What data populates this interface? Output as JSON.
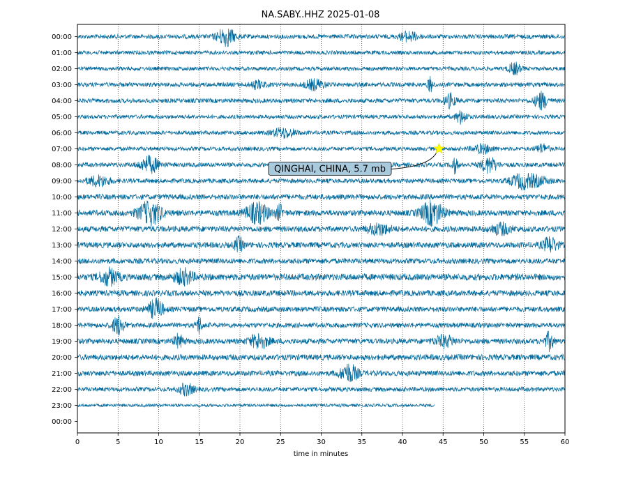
{
  "chart_data": {
    "type": "line",
    "title": "NA.SABY..HHZ 2025-01-08",
    "xlabel": "time in minutes",
    "ylabel": "",
    "xlim": [
      0,
      60
    ],
    "x_ticks": [
      "0",
      "5",
      "10",
      "15",
      "20",
      "25",
      "30",
      "35",
      "40",
      "45",
      "50",
      "55",
      "60"
    ],
    "y_tick_labels": [
      "00:00",
      "01:00",
      "02:00",
      "03:00",
      "04:00",
      "05:00",
      "06:00",
      "07:00",
      "08:00",
      "09:00",
      "10:00",
      "11:00",
      "12:00",
      "13:00",
      "14:00",
      "15:00",
      "16:00",
      "17:00",
      "18:00",
      "19:00",
      "20:00",
      "21:00",
      "22:00",
      "23:00",
      "00:00"
    ],
    "grid": "vertical dotted lines at x ticks",
    "trace_color": "#00689a",
    "last_trace_end_minute": 44,
    "annotation": {
      "text": "QINGHAI, CHINA, 5.7 mb",
      "event_hour_row": 7,
      "event_minute": 44.5,
      "marker": "yellow star",
      "box_color": "#a9c9dd"
    },
    "hourly_amplitude": [
      1.0,
      0.9,
      0.9,
      1.0,
      1.0,
      0.9,
      0.9,
      0.9,
      1.0,
      1.0,
      1.2,
      1.3,
      1.3,
      1.3,
      1.2,
      1.5,
      1.3,
      1.2,
      1.1,
      1.2,
      1.3,
      1.2,
      1.0,
      0.7
    ]
  }
}
